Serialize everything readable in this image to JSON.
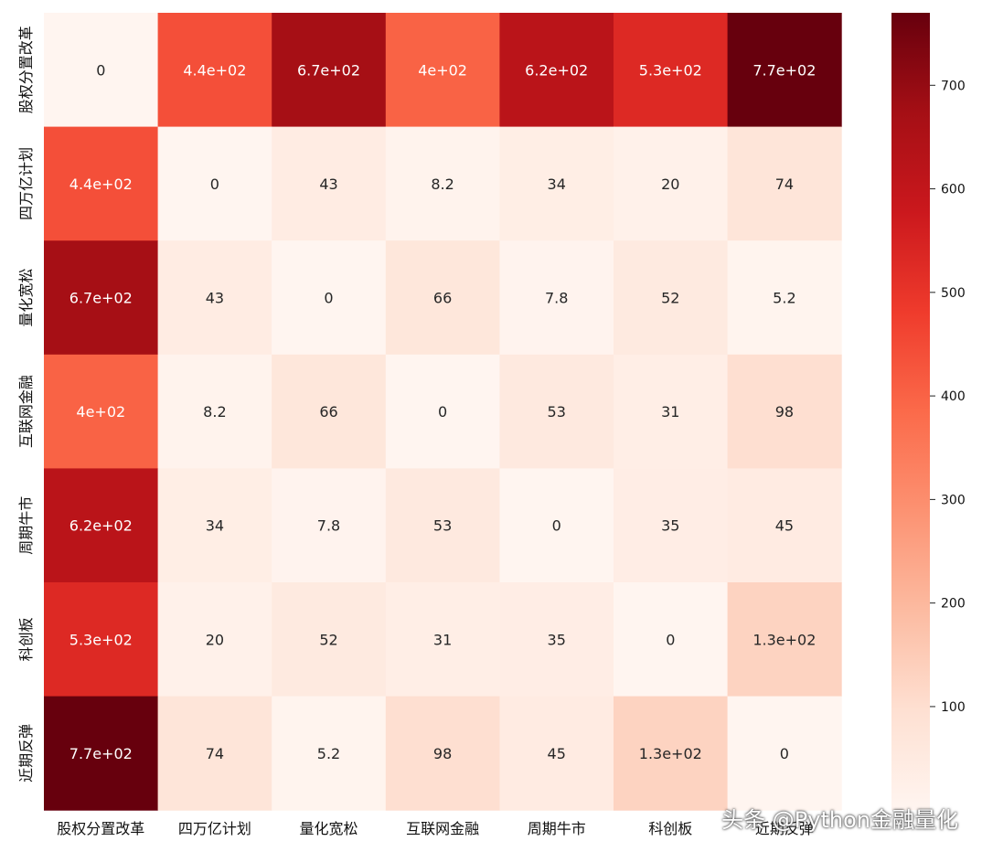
{
  "chart_data": {
    "type": "heatmap",
    "colormap": "Reds",
    "row_labels": [
      "股权分置改革",
      "四万亿计划",
      "量化宽松",
      "互联网金融",
      "周期牛市",
      "科创板",
      "近期反弹"
    ],
    "col_labels": [
      "股权分置改革",
      "四万亿计划",
      "量化宽松",
      "互联网金融",
      "周期牛市",
      "科创板",
      "近期反弹"
    ],
    "values": [
      [
        0,
        440,
        670,
        400,
        620,
        530,
        770
      ],
      [
        440,
        0,
        43,
        8.2,
        34,
        20,
        74
      ],
      [
        670,
        43,
        0,
        66,
        7.8,
        52,
        5.2
      ],
      [
        400,
        8.2,
        66,
        0,
        53,
        31,
        98
      ],
      [
        620,
        34,
        7.8,
        53,
        0,
        35,
        45
      ],
      [
        530,
        20,
        52,
        31,
        35,
        0,
        130
      ],
      [
        770,
        74,
        5.2,
        98,
        45,
        130,
        0
      ]
    ],
    "annotations": [
      [
        "0",
        "4.4e+02",
        "6.7e+02",
        "4e+02",
        "6.2e+02",
        "5.3e+02",
        "7.7e+02"
      ],
      [
        "4.4e+02",
        "0",
        "43",
        "8.2",
        "34",
        "20",
        "74"
      ],
      [
        "6.7e+02",
        "43",
        "0",
        "66",
        "7.8",
        "52",
        "5.2"
      ],
      [
        "4e+02",
        "8.2",
        "66",
        "0",
        "53",
        "31",
        "98"
      ],
      [
        "6.2e+02",
        "34",
        "7.8",
        "53",
        "0",
        "35",
        "45"
      ],
      [
        "5.3e+02",
        "20",
        "52",
        "31",
        "35",
        "0",
        "1.3e+02"
      ],
      [
        "7.7e+02",
        "74",
        "5.2",
        "98",
        "45",
        "1.3e+02",
        "0"
      ]
    ],
    "colorbar": {
      "vmin": 0,
      "vmax": 770,
      "ticks": [
        100,
        200,
        300,
        400,
        500,
        600,
        700
      ],
      "tick_labels": [
        "100",
        "200",
        "300",
        "400",
        "500",
        "600",
        "700"
      ]
    }
  },
  "watermark": "头条 @Python金融量化"
}
